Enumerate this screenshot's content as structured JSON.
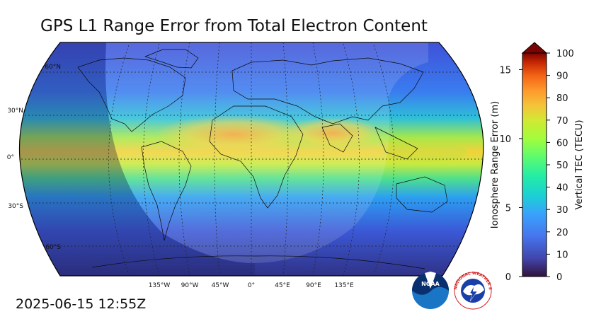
{
  "title": "GPS L1 Range Error from Total Electron Content",
  "timestamp": "2025-06-15 12:55Z",
  "map": {
    "projection": "Robinson",
    "lat_labels": [
      "60°N",
      "30°N",
      "0°",
      "30°S",
      "60°S"
    ],
    "lon_labels": [
      "135°W",
      "90°W",
      "45°W",
      "0°",
      "45°E",
      "90°E",
      "135°E"
    ],
    "gridlines": true,
    "overlay": "sunlit-hemisphere shading"
  },
  "colorbar": {
    "left_axis_label": "Ionosphere Range Error (m)",
    "right_axis_label": "Vertical TEC (TECU)",
    "left_ticks": [
      "0",
      "5",
      "10",
      "15"
    ],
    "right_ticks": [
      "0",
      "10",
      "20",
      "30",
      "40",
      "50",
      "60",
      "70",
      "80",
      "90",
      "100"
    ],
    "tec_range": [
      0,
      100
    ],
    "range_error_range": [
      0,
      16.2
    ],
    "extend": "max"
  },
  "logos": {
    "noaa": "NOAA",
    "nws": "NATIONAL WEATHER SERVICE"
  }
}
